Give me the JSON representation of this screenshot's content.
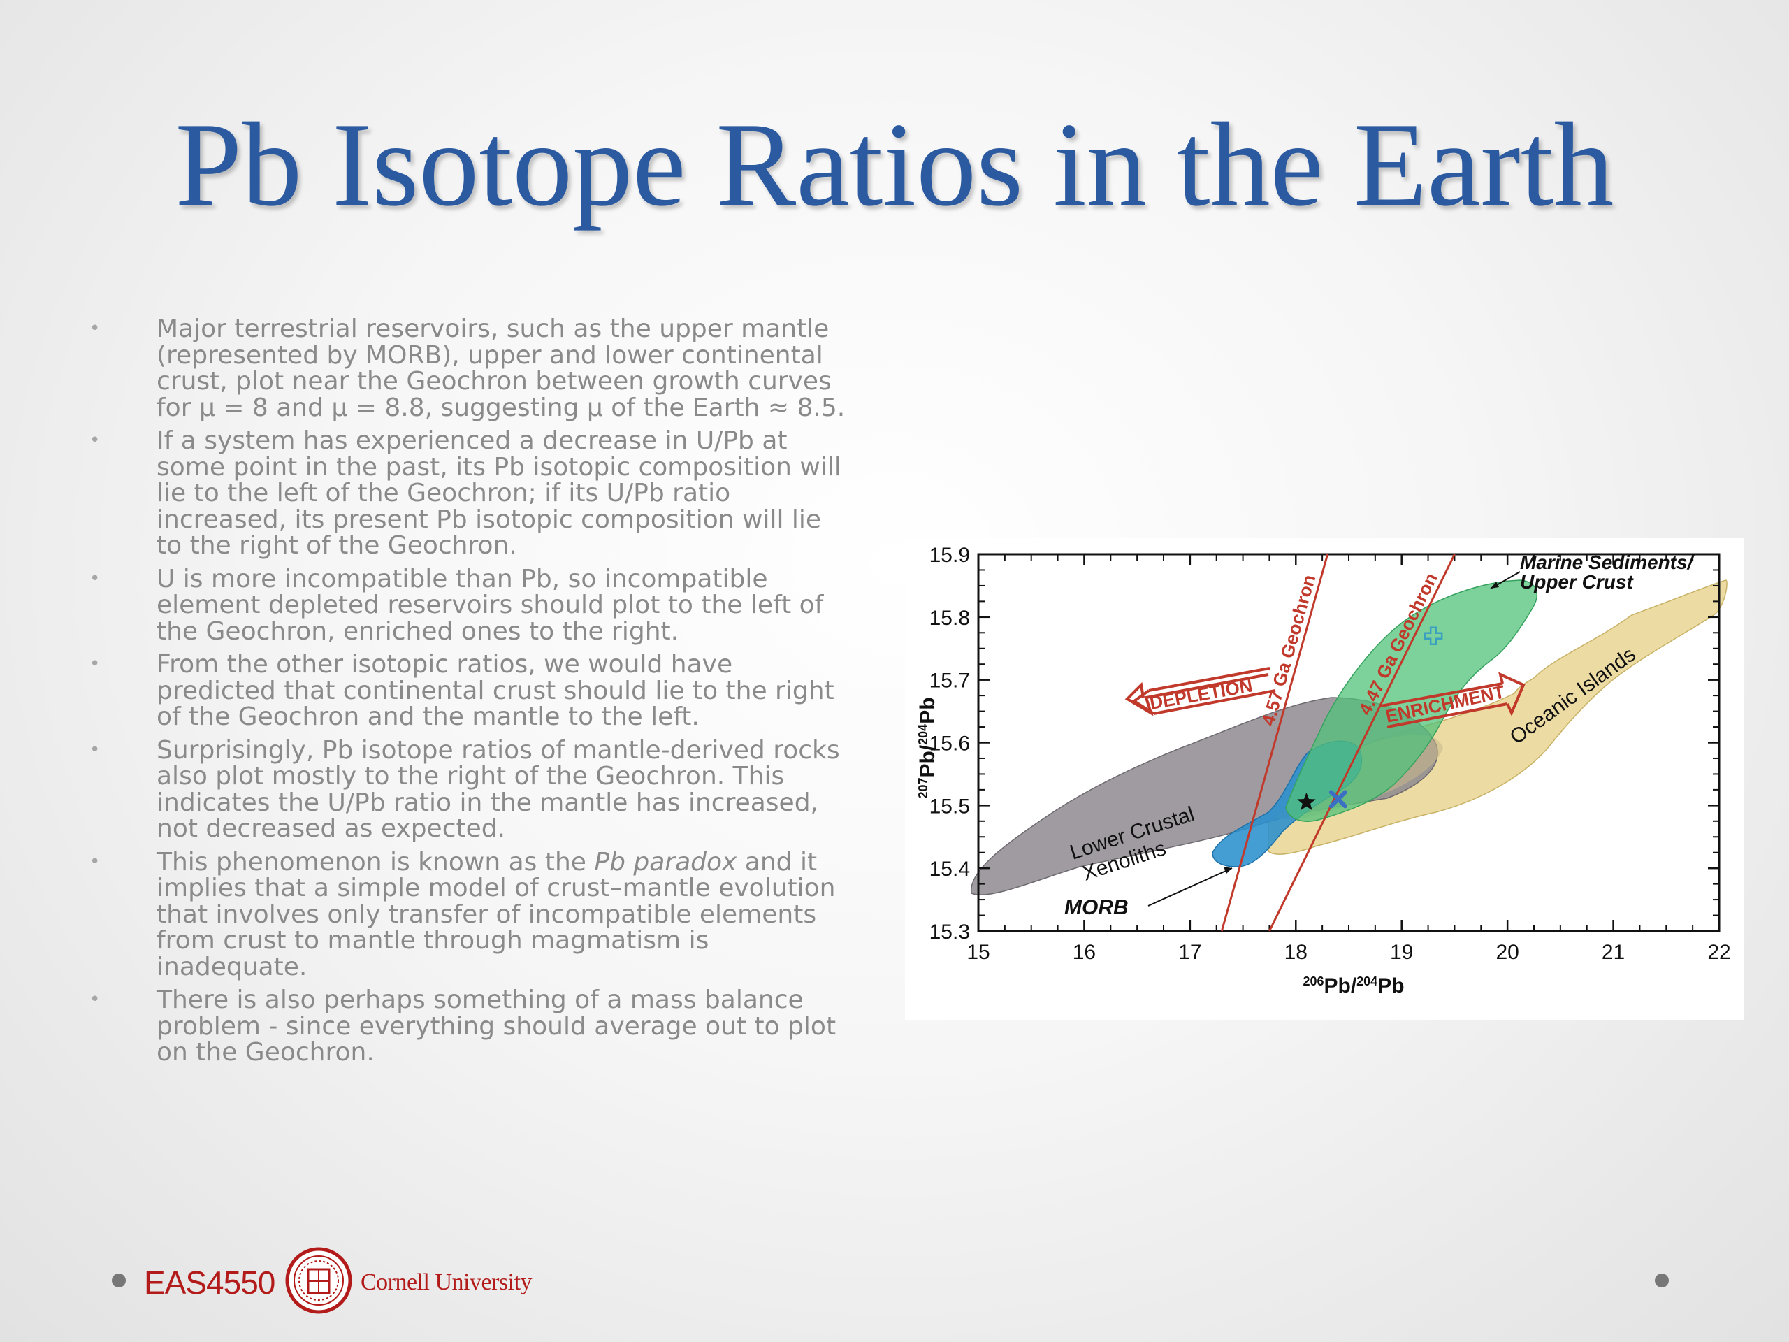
{
  "slide": {
    "title": "Pb Isotope Ratios in the Earth",
    "bullets": [
      {
        "text": "Major terrestrial reservoirs, such as the upper mantle (represented by MORB), upper and lower continental crust, plot near the Geochron between growth curves for μ = 8 and μ = 8.8, suggesting μ of the Earth ≈ 8.5."
      },
      {
        "text": "If a system has experienced a decrease in U/Pb at some point in the past, its Pb isotopic composition will lie to the left of the Geochron; if its U/Pb ratio increased, its present Pb isotopic composition will lie to the right of the Geochron."
      },
      {
        "text": "U is more incompatible than Pb, so incompatible element depleted reservoirs should plot to the left of the Geochron, enriched ones to the right."
      },
      {
        "text": "From the other isotopic ratios, we would have predicted that continental crust should lie to the right of the Geochron and the mantle to the left."
      },
      {
        "text": "Surprisingly, Pb isotope ratios of mantle-derived rocks also plot mostly to the right of the Geochron. This indicates the U/Pb ratio in the mantle has increased, not decreased as expected."
      },
      {
        "pre": "This phenomenon is known as the ",
        "italic": "Pb paradox",
        "post": " and it implies that a simple model of crust–mantle evolution that involves only transfer of incompatible elements from crust to mantle through magmatism is inadequate."
      },
      {
        "text": "There is also perhaps something of a mass balance problem - since everything should average out to plot on the Geochron."
      }
    ],
    "bullet_symbol": "•"
  },
  "footer": {
    "course_code": "EAS4550",
    "university": "Cornell University"
  },
  "chart_data": {
    "type": "scatter",
    "xlabel_parts": [
      "206",
      "Pb/",
      "204",
      "Pb"
    ],
    "ylabel_parts": [
      "207",
      "Pb/",
      "204",
      "Pb"
    ],
    "xlim": [
      15,
      22
    ],
    "ylim": [
      15.3,
      15.9
    ],
    "x_ticks": [
      "15",
      "16",
      "17",
      "18",
      "19",
      "20",
      "21",
      "22"
    ],
    "y_ticks": [
      "15.3",
      "15.4",
      "15.5",
      "15.6",
      "15.7",
      "15.8",
      "15.9"
    ],
    "fields": [
      {
        "name": "Lower Crustal Xenoliths",
        "label_lines": [
          "Lower Crustal",
          "Xenoliths"
        ],
        "color": "#8e8a90"
      },
      {
        "name": "MORB",
        "color": "#2a8fcd"
      },
      {
        "name": "Oceanic Islands",
        "color": "#e9d593"
      },
      {
        "name": "Marine Sediments/ Upper Crust",
        "label_lines": [
          "Marine Sediments/",
          "Upper Crust"
        ],
        "color": "#52c27a"
      }
    ],
    "lines": [
      {
        "name": "4.57 Ga Geochron",
        "from": [
          17.3,
          15.3
        ],
        "to": [
          18.3,
          15.9
        ],
        "color": "#c0392b"
      },
      {
        "name": "4.47 Ga Geochron",
        "from": [
          17.75,
          15.3
        ],
        "to": [
          19.5,
          15.9
        ],
        "color": "#c0392b"
      }
    ],
    "arrows": [
      {
        "label": "DEPLETION",
        "direction": "left",
        "color": "#c0392b"
      },
      {
        "label": "ENRICHMENT",
        "direction": "right",
        "color": "#c0392b"
      }
    ],
    "points": [
      {
        "symbol": "star",
        "x": 18.1,
        "y": 15.505,
        "color": "#111111"
      },
      {
        "symbol": "cross",
        "x": 18.4,
        "y": 15.51,
        "color": "#3a6fc4"
      },
      {
        "symbol": "plus",
        "x": 19.3,
        "y": 15.77,
        "color": "#3aa0c0"
      }
    ]
  }
}
